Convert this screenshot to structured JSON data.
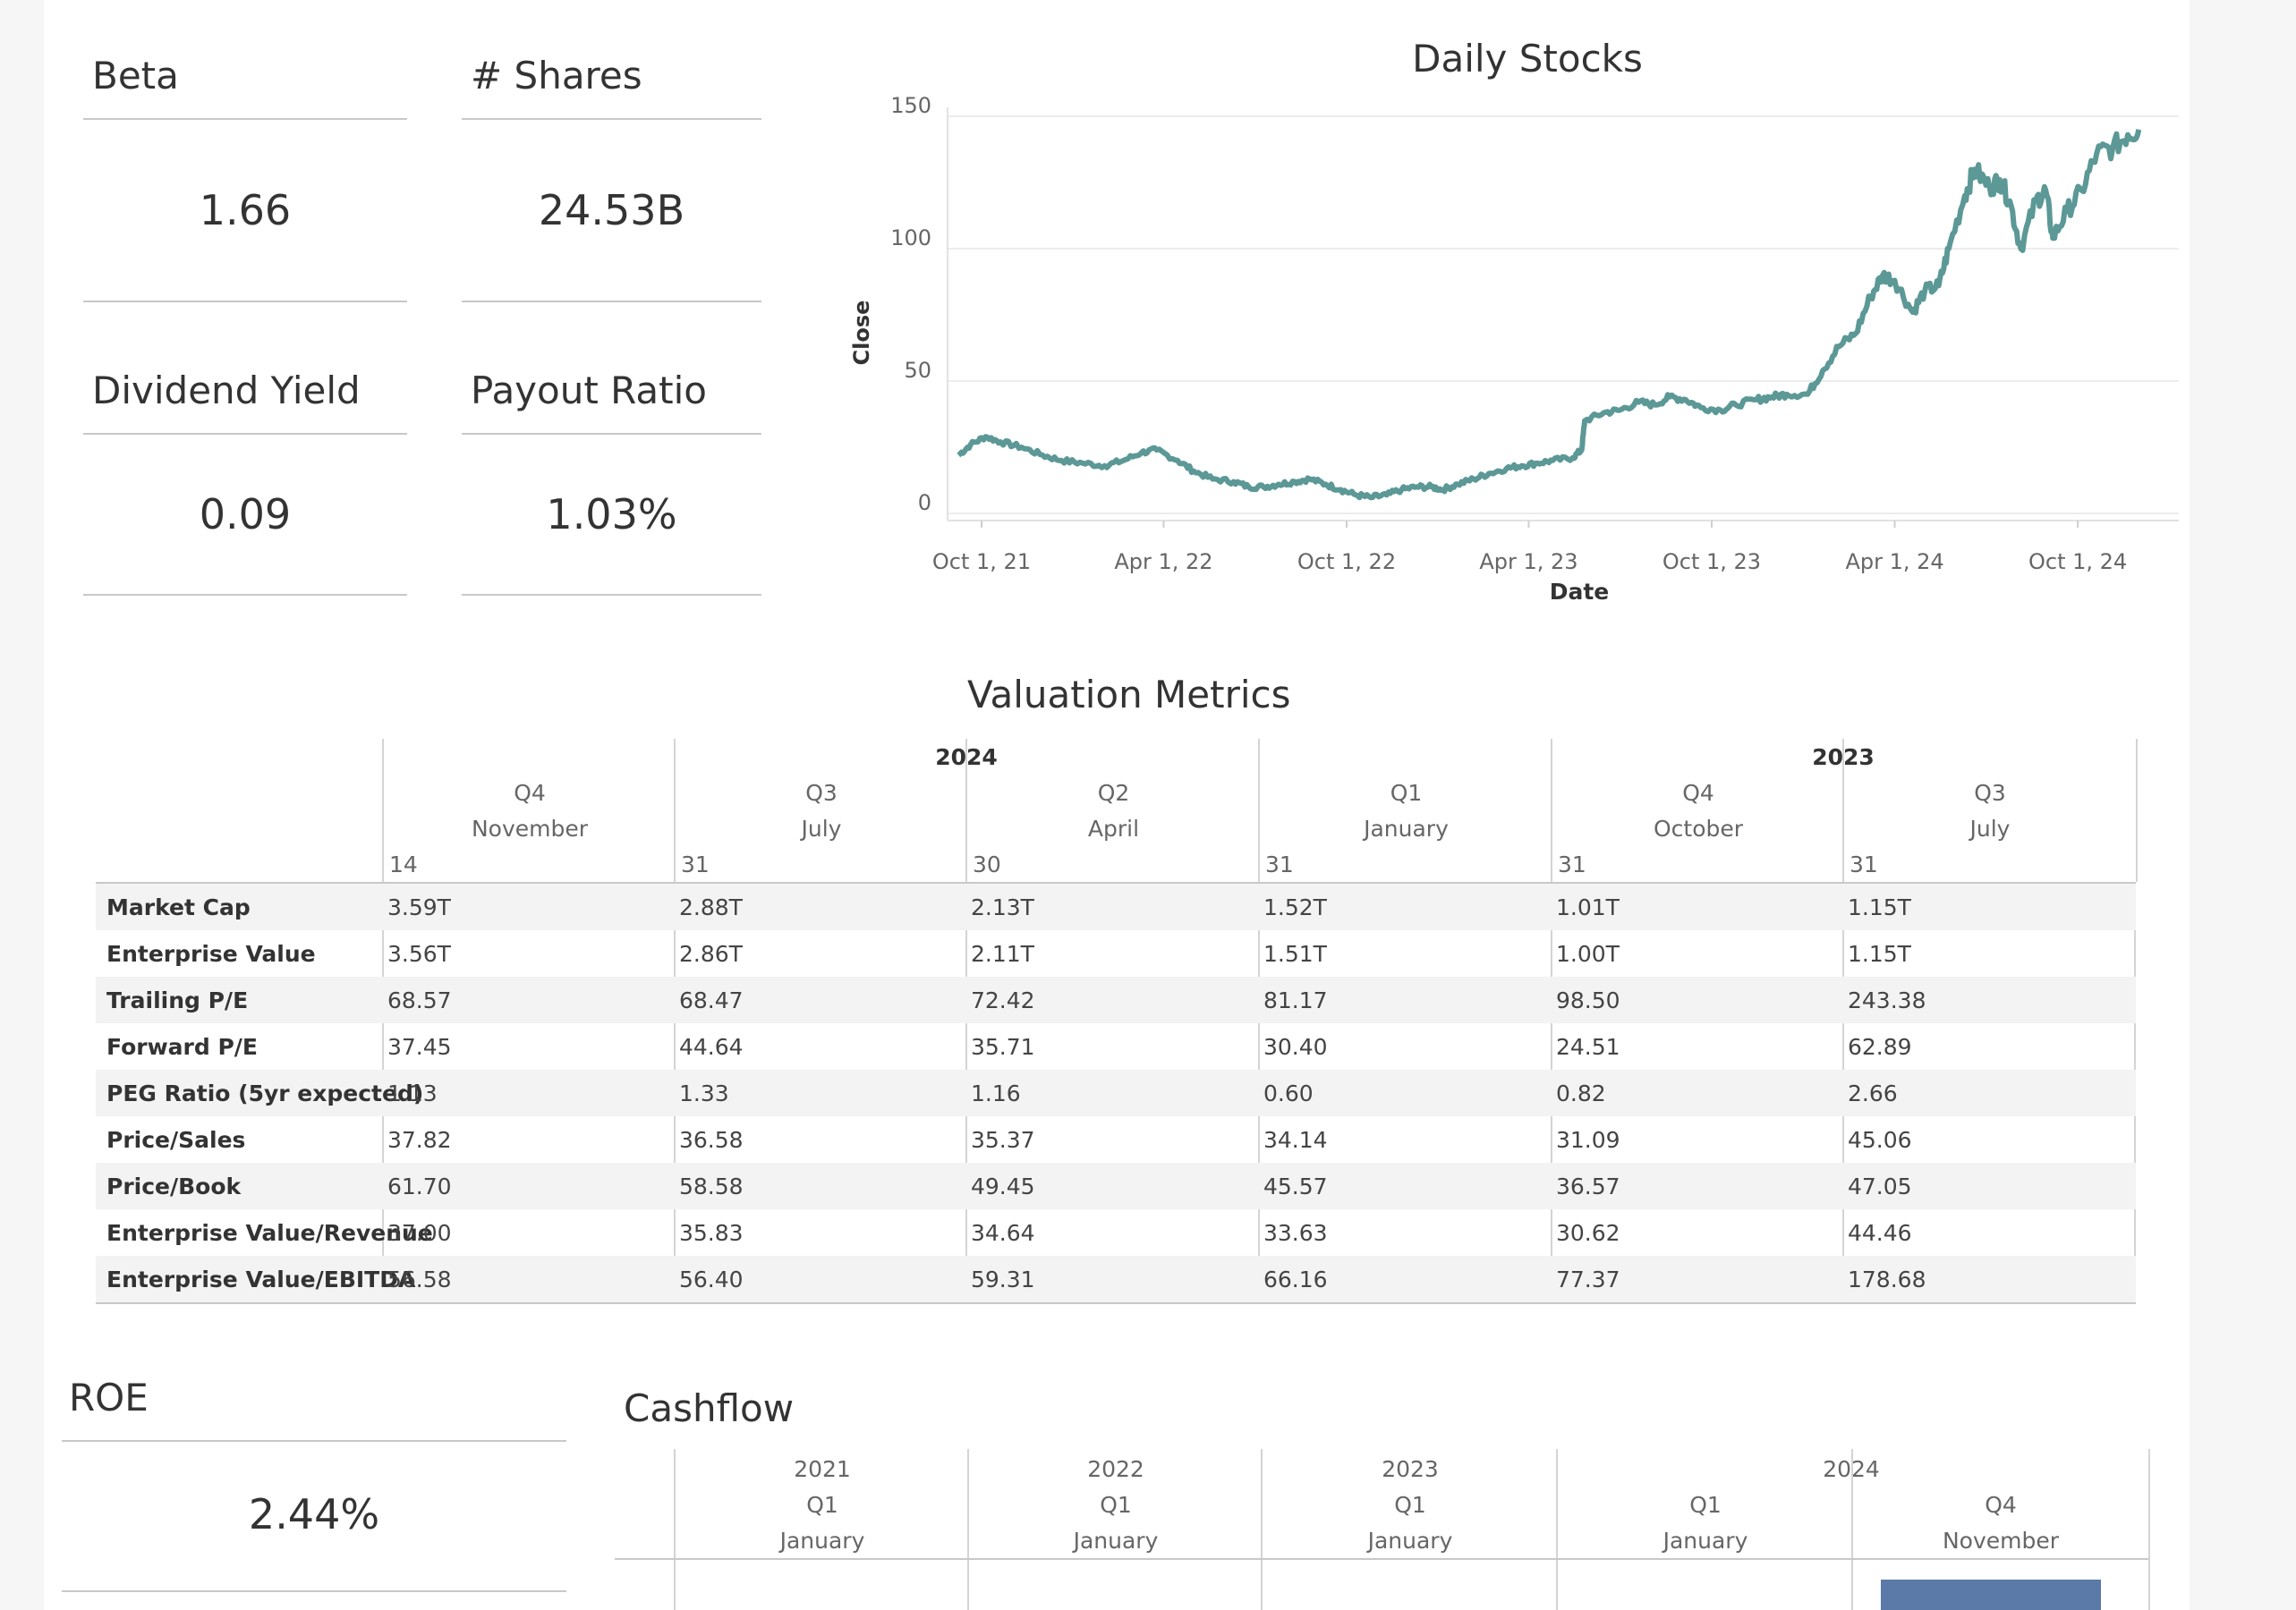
{
  "kpis": {
    "beta": {
      "title": "Beta",
      "value": "1.66"
    },
    "shares": {
      "title": "# Shares",
      "value": "24.53B"
    },
    "dividend_yield": {
      "title": "Dividend Yield",
      "value": "0.09"
    },
    "payout_ratio": {
      "title": "Payout Ratio",
      "value": "1.03%"
    },
    "roe": {
      "title": "ROE",
      "value": "2.44%"
    }
  },
  "chart_data": {
    "type": "line",
    "title": "Daily Stocks",
    "xlabel": "Date",
    "ylabel": "Close",
    "ylim": [
      0,
      150
    ],
    "yticks": [
      0,
      50,
      100,
      150
    ],
    "xlim": [
      "2021-08-28",
      "2025-01-10"
    ],
    "xticks": [
      {
        "date": "2021-10-01",
        "label": "Oct 1, 21"
      },
      {
        "date": "2022-04-01",
        "label": "Apr 1, 22"
      },
      {
        "date": "2022-10-01",
        "label": "Oct 1, 22"
      },
      {
        "date": "2023-04-01",
        "label": "Apr 1, 23"
      },
      {
        "date": "2023-10-01",
        "label": "Oct 1, 23"
      },
      {
        "date": "2024-04-01",
        "label": "Apr 1, 24"
      },
      {
        "date": "2024-10-01",
        "label": "Oct 1, 24"
      }
    ],
    "grid": true,
    "line_color": "#5b9896",
    "series": [
      {
        "points": [
          [
            "2021-09-08",
            22
          ],
          [
            "2021-09-20",
            26
          ],
          [
            "2021-10-05",
            29
          ],
          [
            "2021-10-20",
            27
          ],
          [
            "2021-11-10",
            25
          ],
          [
            "2021-12-01",
            22
          ],
          [
            "2021-12-20",
            20
          ],
          [
            "2022-01-10",
            19
          ],
          [
            "2022-02-01",
            18
          ],
          [
            "2022-02-20",
            20
          ],
          [
            "2022-03-10",
            23
          ],
          [
            "2022-03-25",
            24
          ],
          [
            "2022-04-15",
            20
          ],
          [
            "2022-05-01",
            16
          ],
          [
            "2022-05-20",
            13
          ],
          [
            "2022-06-10",
            12
          ],
          [
            "2022-06-25",
            10
          ],
          [
            "2022-07-10",
            10
          ],
          [
            "2022-07-25",
            11
          ],
          [
            "2022-08-10",
            12
          ],
          [
            "2022-08-25",
            13
          ],
          [
            "2022-09-10",
            11
          ],
          [
            "2022-09-25",
            9
          ],
          [
            "2022-10-10",
            7
          ],
          [
            "2022-10-25",
            6
          ],
          [
            "2022-11-10",
            7
          ],
          [
            "2022-11-25",
            9
          ],
          [
            "2022-12-10",
            10
          ],
          [
            "2022-12-25",
            10
          ],
          [
            "2023-01-05",
            9
          ],
          [
            "2023-01-20",
            11
          ],
          [
            "2023-02-05",
            13
          ],
          [
            "2023-02-20",
            15
          ],
          [
            "2023-03-10",
            17
          ],
          [
            "2023-03-25",
            18
          ],
          [
            "2023-04-10",
            19
          ],
          [
            "2023-04-25",
            20
          ],
          [
            "2023-05-15",
            21
          ],
          [
            "2023-05-24",
            24
          ],
          [
            "2023-05-27",
            35
          ],
          [
            "2023-06-15",
            38
          ],
          [
            "2023-07-01",
            39
          ],
          [
            "2023-07-20",
            42
          ],
          [
            "2023-08-05",
            41
          ],
          [
            "2023-08-20",
            44
          ],
          [
            "2023-09-05",
            43
          ],
          [
            "2023-09-20",
            40
          ],
          [
            "2023-10-10",
            39
          ],
          [
            "2023-10-25",
            41
          ],
          [
            "2023-11-15",
            43
          ],
          [
            "2023-11-30",
            44
          ],
          [
            "2023-12-15",
            45
          ],
          [
            "2024-01-05",
            45
          ],
          [
            "2024-01-20",
            54
          ],
          [
            "2024-02-05",
            63
          ],
          [
            "2024-02-22",
            68
          ],
          [
            "2024-03-08",
            82
          ],
          [
            "2024-03-20",
            90
          ],
          [
            "2024-04-01",
            88
          ],
          [
            "2024-04-19",
            76
          ],
          [
            "2024-05-01",
            84
          ],
          [
            "2024-05-15",
            86
          ],
          [
            "2024-05-25",
            100
          ],
          [
            "2024-06-10",
            120
          ],
          [
            "2024-06-20",
            130
          ],
          [
            "2024-07-05",
            123
          ],
          [
            "2024-07-15",
            126
          ],
          [
            "2024-07-25",
            118
          ],
          [
            "2024-08-05",
            100
          ],
          [
            "2024-08-20",
            118
          ],
          [
            "2024-08-30",
            122
          ],
          [
            "2024-09-06",
            104
          ],
          [
            "2024-09-20",
            114
          ],
          [
            "2024-10-05",
            122
          ],
          [
            "2024-10-20",
            136
          ],
          [
            "2024-11-05",
            138
          ],
          [
            "2024-11-20",
            143
          ],
          [
            "2024-12-01",
            145
          ]
        ]
      }
    ]
  },
  "valuation": {
    "title": "Valuation Metrics",
    "years": [
      {
        "label": "2024"
      },
      {
        "label": "2023"
      }
    ],
    "columns": [
      {
        "quarter": "Q4",
        "month": "November",
        "day": "14"
      },
      {
        "quarter": "Q3",
        "month": "July",
        "day": "31"
      },
      {
        "quarter": "Q2",
        "month": "April",
        "day": "30"
      },
      {
        "quarter": "Q1",
        "month": "January",
        "day": "31"
      },
      {
        "quarter": "Q4",
        "month": "October",
        "day": "31"
      },
      {
        "quarter": "Q3",
        "month": "July",
        "day": "31"
      }
    ],
    "rows": [
      {
        "label": "Market Cap",
        "values": [
          "3.59T",
          "2.88T",
          "2.13T",
          "1.52T",
          "1.01T",
          "1.15T"
        ]
      },
      {
        "label": "Enterprise Value",
        "values": [
          "3.56T",
          "2.86T",
          "2.11T",
          "1.51T",
          "1.00T",
          "1.15T"
        ]
      },
      {
        "label": "Trailing P/E",
        "values": [
          "68.57",
          "68.47",
          "72.42",
          "81.17",
          "98.50",
          "243.38"
        ]
      },
      {
        "label": "Forward P/E",
        "values": [
          "37.45",
          "44.64",
          "35.71",
          "30.40",
          "24.51",
          "62.89"
        ]
      },
      {
        "label": "PEG Ratio (5yr expected)",
        "values": [
          "1.13",
          "1.33",
          "1.16",
          "0.60",
          "0.82",
          "2.66"
        ]
      },
      {
        "label": "Price/Sales",
        "values": [
          "37.82",
          "36.58",
          "35.37",
          "34.14",
          "31.09",
          "45.06"
        ]
      },
      {
        "label": "Price/Book",
        "values": [
          "61.70",
          "58.58",
          "49.45",
          "45.57",
          "36.57",
          "47.05"
        ]
      },
      {
        "label": "Enterprise Value/Revenue",
        "values": [
          "37.00",
          "35.83",
          "34.64",
          "33.63",
          "30.62",
          "44.46"
        ]
      },
      {
        "label": "Enterprise Value/EBITDA",
        "values": [
          "56.58",
          "56.40",
          "59.31",
          "66.16",
          "77.37",
          "178.68"
        ]
      }
    ]
  },
  "cashflow": {
    "title": "Cashflow",
    "columns": [
      {
        "year": "2021",
        "quarter": "Q1",
        "month": "January"
      },
      {
        "year": "2022",
        "quarter": "Q1",
        "month": "January"
      },
      {
        "year": "2023",
        "quarter": "Q1",
        "month": "January"
      },
      {
        "year": "",
        "quarter": "Q1",
        "month": "January"
      },
      {
        "year": "",
        "quarter": "Q4",
        "month": "November"
      }
    ],
    "year_2024": "2024",
    "bar_color": "#5b7aa8"
  }
}
